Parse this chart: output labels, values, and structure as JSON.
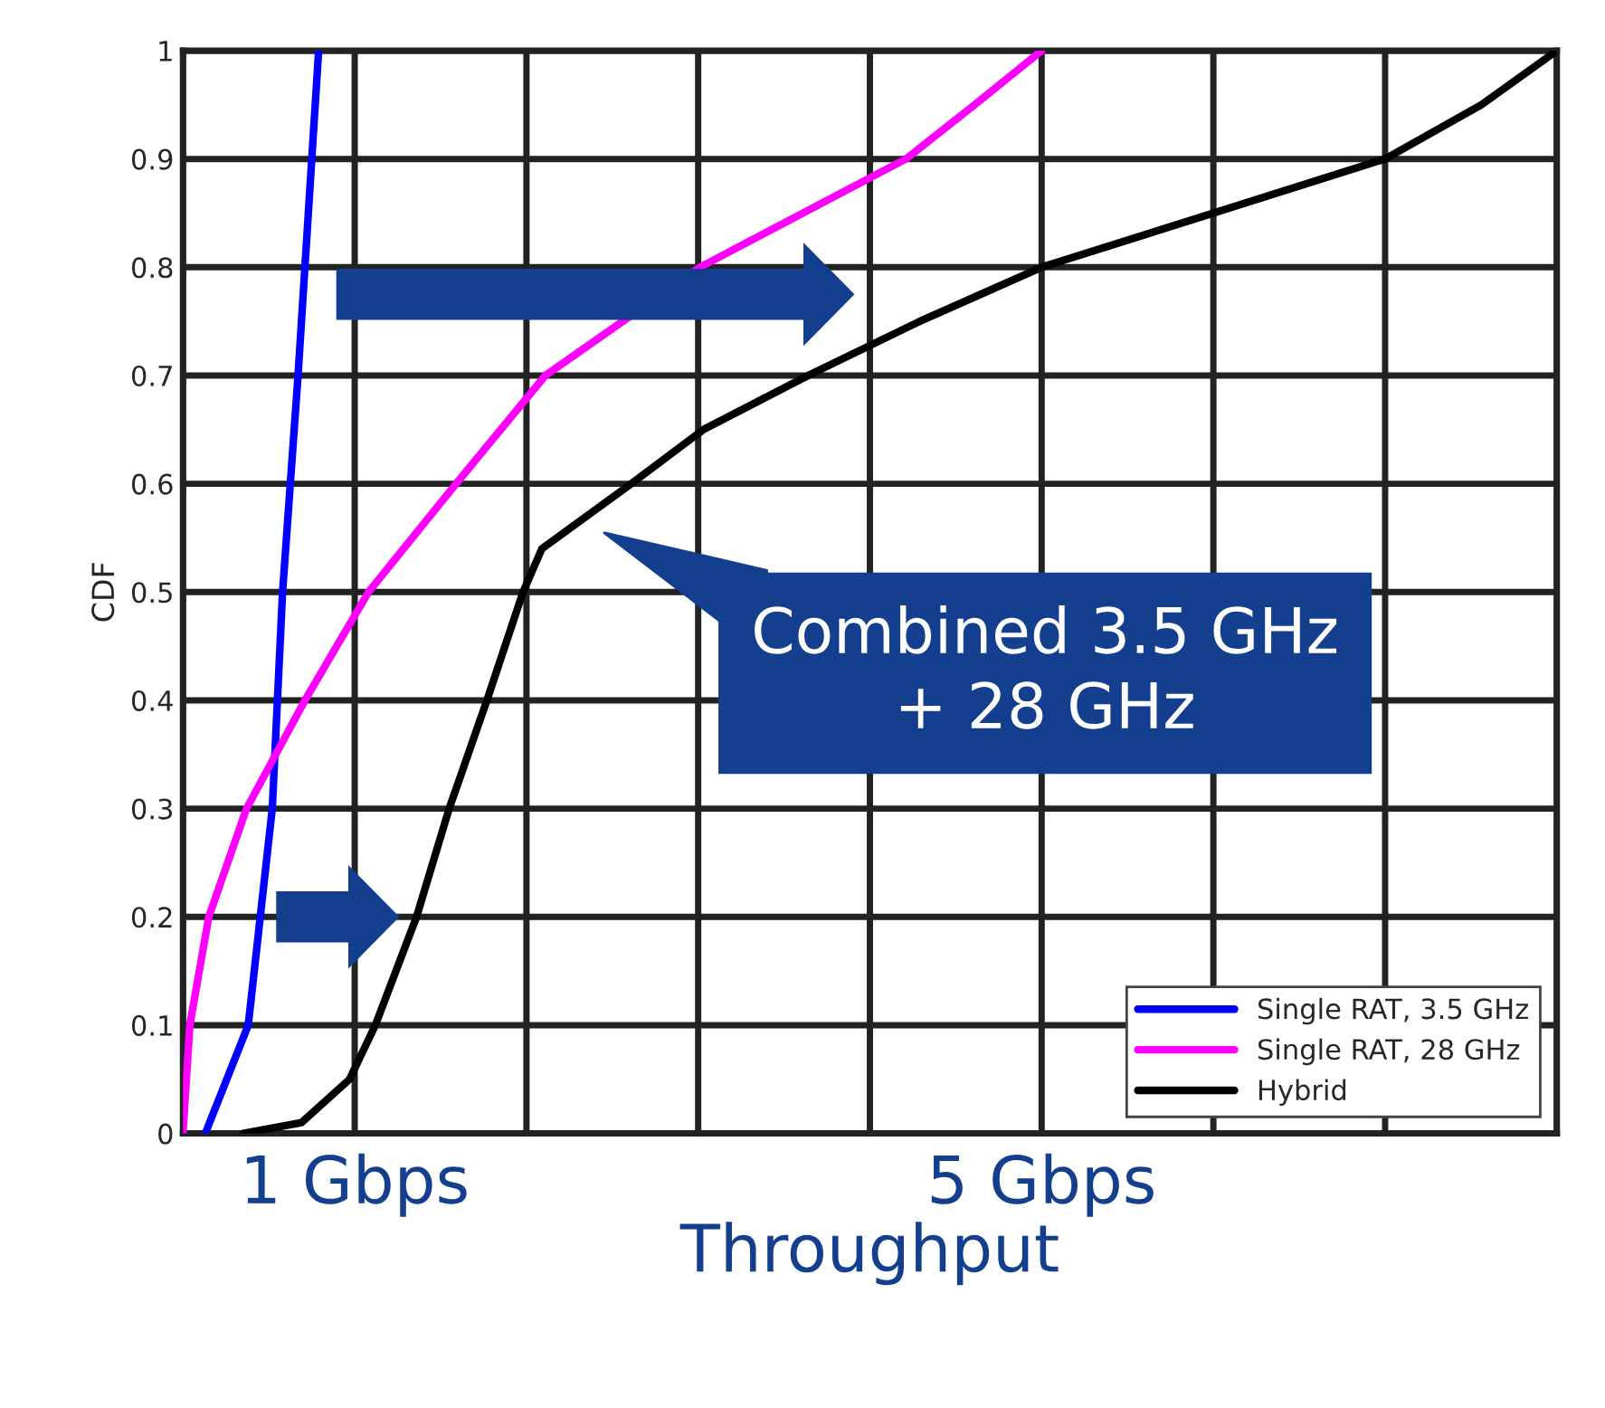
{
  "chart_data": {
    "type": "line",
    "xlabel": "Throughput",
    "ylabel": "CDF",
    "xlim": [
      0,
      8
    ],
    "ylim": [
      0,
      1
    ],
    "xticks": [
      {
        "value": 0,
        "label": null
      },
      {
        "value": 1,
        "label": "1 Gbps"
      },
      {
        "value": 2,
        "label": null
      },
      {
        "value": 3,
        "label": null
      },
      {
        "value": 4,
        "label": null
      },
      {
        "value": 5,
        "label": "5 Gbps"
      },
      {
        "value": 6,
        "label": null
      },
      {
        "value": 7,
        "label": null
      },
      {
        "value": 8,
        "label": null
      }
    ],
    "yticks": [
      0,
      0.1,
      0.2,
      0.3,
      0.4,
      0.5,
      0.6,
      0.7,
      0.8,
      0.9,
      1
    ],
    "grid": true,
    "legend": "bottom right",
    "line_style": "solid",
    "marker": "none",
    "annotations": [
      "Combined 3.5 GHz + 28 GHz"
    ],
    "series": [
      {
        "name": "Single RAT, 3.5 GHz",
        "color": "#0000ff",
        "x": [
          0.13,
          0.38,
          0.45,
          0.52,
          0.58,
          0.67,
          0.79
        ],
        "values": [
          0,
          0.1,
          0.2,
          0.3,
          0.5,
          0.7,
          1
        ]
      },
      {
        "name": "Single RAT, 28 GHz",
        "color": "#ff00ff",
        "x": [
          0,
          0.04,
          0.15,
          0.37,
          0.71,
          1.08,
          1.59,
          2.11,
          3.01,
          4.21,
          4.61,
          5.0
        ],
        "values": [
          0,
          0.1,
          0.2,
          0.3,
          0.4,
          0.5,
          0.6,
          0.7,
          0.8,
          0.9,
          0.95,
          1
        ]
      },
      {
        "name": "Hybrid",
        "color": "#000000",
        "x": [
          0.35,
          0.69,
          0.97,
          1.12,
          1.36,
          1.55,
          1.77,
          1.98,
          2.09,
          2.61,
          3.03,
          3.64,
          4.29,
          5.0,
          6.0,
          7.0,
          7.56,
          8.0
        ],
        "values": [
          0,
          0.01,
          0.05,
          0.1,
          0.2,
          0.3,
          0.4,
          0.5,
          0.54,
          0.6,
          0.65,
          0.7,
          0.75,
          0.8,
          0.85,
          0.9,
          0.95,
          1
        ]
      }
    ]
  }
}
